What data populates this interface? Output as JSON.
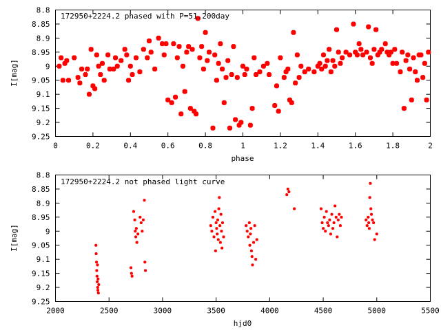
{
  "charts": {
    "phased": {
      "title": "172950+2224.2 phased with P=51.200day",
      "xlabel": "phase",
      "ylabel": "I[mag]"
    },
    "raw": {
      "title": "172950+2224.2 not phased light curve",
      "xlabel": "hjd0",
      "ylabel": "I[mag]"
    }
  },
  "chart_data": [
    {
      "type": "scatter",
      "title": "172950+2224.2 phased with P=51.200day",
      "xlabel": "phase",
      "ylabel": "I[mag]",
      "xlim": [
        0,
        2
      ],
      "ylim": [
        9.25,
        8.8
      ],
      "y_inverted": true,
      "xticks": [
        "0",
        "0.2",
        "0.4",
        "0.6",
        "0.8",
        "1",
        "1.2",
        "1.4",
        "1.6",
        "1.8",
        "2"
      ],
      "yticks": [
        "8.8",
        "8.85",
        "8.9",
        "8.95",
        "9",
        "9.05",
        "9.1",
        "9.15",
        "9.2",
        "9.25"
      ],
      "marker_color": "#ff0000",
      "grid": false,
      "series": [
        {
          "points": [
            [
              0.02,
              9.0
            ],
            [
              0.03,
              8.97
            ],
            [
              0.04,
              9.05
            ],
            [
              0.05,
              8.99
            ],
            [
              0.06,
              8.98
            ],
            [
              0.07,
              9.05
            ],
            [
              0.1,
              8.97
            ],
            [
              0.12,
              9.04
            ],
            [
              0.13,
              9.06
            ],
            [
              0.14,
              9.01
            ],
            [
              0.16,
              9.03
            ],
            [
              0.17,
              9.01
            ],
            [
              0.18,
              9.1
            ],
            [
              0.19,
              8.94
            ],
            [
              0.2,
              9.07
            ],
            [
              0.21,
              9.08
            ],
            [
              0.22,
              8.96
            ],
            [
              0.23,
              9.0
            ],
            [
              0.24,
              9.03
            ],
            [
              0.25,
              8.99
            ],
            [
              0.26,
              9.05
            ],
            [
              0.28,
              8.96
            ],
            [
              0.29,
              9.01
            ],
            [
              0.31,
              9.01
            ],
            [
              0.32,
              8.97
            ],
            [
              0.33,
              9.0
            ],
            [
              0.35,
              8.98
            ],
            [
              0.37,
              8.94
            ],
            [
              0.38,
              8.96
            ],
            [
              0.39,
              9.05
            ],
            [
              0.4,
              9.0
            ],
            [
              0.41,
              9.03
            ],
            [
              0.43,
              8.97
            ],
            [
              0.45,
              9.02
            ],
            [
              0.47,
              8.94
            ],
            [
              0.49,
              8.97
            ],
            [
              0.5,
              8.91
            ],
            [
              0.51,
              8.95
            ],
            [
              0.53,
              9.01
            ],
            [
              0.55,
              8.9
            ],
            [
              0.57,
              8.92
            ],
            [
              0.58,
              8.96
            ],
            [
              0.59,
              8.92
            ],
            [
              0.6,
              9.12
            ],
            [
              0.62,
              9.13
            ],
            [
              0.63,
              8.92
            ],
            [
              0.64,
              9.11
            ],
            [
              0.65,
              8.97
            ],
            [
              0.66,
              8.93
            ],
            [
              0.67,
              9.17
            ],
            [
              0.68,
              9.0
            ],
            [
              0.69,
              9.09
            ],
            [
              0.7,
              8.95
            ],
            [
              0.71,
              8.93
            ],
            [
              0.72,
              9.15
            ],
            [
              0.73,
              8.94
            ],
            [
              0.74,
              9.16
            ],
            [
              0.75,
              9.17
            ],
            [
              0.76,
              8.83
            ],
            [
              0.77,
              8.97
            ],
            [
              0.78,
              8.93
            ],
            [
              0.79,
              9.01
            ],
            [
              0.8,
              8.88
            ],
            [
              0.81,
              8.98
            ],
            [
              0.82,
              8.95
            ],
            [
              0.84,
              9.22
            ],
            [
              0.85,
              8.96
            ],
            [
              0.86,
              9.05
            ],
            [
              0.87,
              8.99
            ],
            [
              0.88,
              8.92
            ],
            [
              0.89,
              9.01
            ],
            [
              0.9,
              9.13
            ],
            [
              0.91,
              9.04
            ],
            [
              0.92,
              8.98
            ],
            [
              0.93,
              9.22
            ],
            [
              0.94,
              9.03
            ],
            [
              0.95,
              8.93
            ],
            [
              0.96,
              9.19
            ],
            [
              0.97,
              9.04
            ],
            [
              0.98,
              9.21
            ],
            [
              0.99,
              9.2
            ],
            [
              1.0,
              9.0
            ],
            [
              1.01,
              9.03
            ],
            [
              1.02,
              9.01
            ],
            [
              1.04,
              9.21
            ],
            [
              1.05,
              9.15
            ],
            [
              1.06,
              8.97
            ],
            [
              1.07,
              9.03
            ],
            [
              1.09,
              9.02
            ],
            [
              1.11,
              9.0
            ],
            [
              1.13,
              8.99
            ],
            [
              1.14,
              9.03
            ],
            [
              1.17,
              9.14
            ],
            [
              1.18,
              9.07
            ],
            [
              1.19,
              9.16
            ],
            [
              1.2,
              8.97
            ],
            [
              1.22,
              9.04
            ],
            [
              1.23,
              9.02
            ],
            [
              1.24,
              9.01
            ],
            [
              1.25,
              9.12
            ],
            [
              1.26,
              9.13
            ],
            [
              1.27,
              8.88
            ],
            [
              1.28,
              9.06
            ],
            [
              1.29,
              8.96
            ],
            [
              1.3,
              9.04
            ],
            [
              1.31,
              9.0
            ],
            [
              1.33,
              9.02
            ],
            [
              1.35,
              9.01
            ],
            [
              1.38,
              9.02
            ],
            [
              1.4,
              9.0
            ],
            [
              1.41,
              8.99
            ],
            [
              1.42,
              9.01
            ],
            [
              1.43,
              8.96
            ],
            [
              1.44,
              9.0
            ],
            [
              1.45,
              8.98
            ],
            [
              1.46,
              8.94
            ],
            [
              1.47,
              9.02
            ],
            [
              1.48,
              8.98
            ],
            [
              1.49,
              9.0
            ],
            [
              1.5,
              8.87
            ],
            [
              1.51,
              8.95
            ],
            [
              1.52,
              8.99
            ],
            [
              1.53,
              8.97
            ],
            [
              1.55,
              8.95
            ],
            [
              1.57,
              8.96
            ],
            [
              1.59,
              8.85
            ],
            [
              1.6,
              8.95
            ],
            [
              1.61,
              8.96
            ],
            [
              1.62,
              8.92
            ],
            [
              1.63,
              8.94
            ],
            [
              1.64,
              8.96
            ],
            [
              1.66,
              8.95
            ],
            [
              1.67,
              8.86
            ],
            [
              1.68,
              8.97
            ],
            [
              1.69,
              8.99
            ],
            [
              1.7,
              8.94
            ],
            [
              1.71,
              8.87
            ],
            [
              1.72,
              8.96
            ],
            [
              1.73,
              8.95
            ],
            [
              1.74,
              8.94
            ],
            [
              1.76,
              8.92
            ],
            [
              1.77,
              8.95
            ],
            [
              1.78,
              8.96
            ],
            [
              1.79,
              8.95
            ],
            [
              1.8,
              8.99
            ],
            [
              1.81,
              8.94
            ],
            [
              1.82,
              8.99
            ],
            [
              1.84,
              9.02
            ],
            [
              1.85,
              8.95
            ],
            [
              1.86,
              9.15
            ],
            [
              1.87,
              8.98
            ],
            [
              1.88,
              8.96
            ],
            [
              1.89,
              9.01
            ],
            [
              1.9,
              9.12
            ],
            [
              1.91,
              8.97
            ],
            [
              1.92,
              9.02
            ],
            [
              1.93,
              9.05
            ],
            [
              1.94,
              8.96
            ],
            [
              1.95,
              8.96
            ],
            [
              1.96,
              9.04
            ],
            [
              1.97,
              8.99
            ],
            [
              1.98,
              9.12
            ],
            [
              1.99,
              8.95
            ]
          ]
        }
      ]
    },
    {
      "type": "scatter",
      "title": "172950+2224.2 not phased light curve",
      "xlabel": "hjd0",
      "ylabel": "I[mag]",
      "xlim": [
        2000,
        5500
      ],
      "ylim": [
        9.25,
        8.8
      ],
      "y_inverted": true,
      "xticks": [
        "2000",
        "2500",
        "3000",
        "3500",
        "4000",
        "4500",
        "5000",
        "5500"
      ],
      "yticks": [
        "8.8",
        "8.85",
        "8.9",
        "8.95",
        "9",
        "9.05",
        "9.1",
        "9.15",
        "9.2",
        "9.25"
      ],
      "marker_color": "#ff0000",
      "grid": false,
      "series": [
        {
          "points": [
            [
              2378,
              9.05
            ],
            [
              2380,
              9.08
            ],
            [
              2383,
              9.11
            ],
            [
              2385,
              9.14
            ],
            [
              2388,
              9.16
            ],
            [
              2390,
              9.18
            ],
            [
              2392,
              9.12
            ],
            [
              2394,
              9.2
            ],
            [
              2396,
              9.21
            ],
            [
              2398,
              9.17
            ],
            [
              2401,
              9.22
            ],
            [
              2404,
              9.19
            ],
            [
              2705,
              9.13
            ],
            [
              2710,
              9.15
            ],
            [
              2715,
              9.16
            ],
            [
              2730,
              8.93
            ],
            [
              2740,
              8.96
            ],
            [
              2745,
              9.0
            ],
            [
              2750,
              9.02
            ],
            [
              2755,
              8.99
            ],
            [
              2760,
              9.04
            ],
            [
              2770,
              9.01
            ],
            [
              2790,
              8.95
            ],
            [
              2800,
              8.97
            ],
            [
              2810,
              9.0
            ],
            [
              2820,
              8.96
            ],
            [
              2830,
              8.89
            ],
            [
              2835,
              9.11
            ],
            [
              2840,
              9.14
            ],
            [
              3450,
              8.98
            ],
            [
              3460,
              9.0
            ],
            [
              3470,
              8.95
            ],
            [
              3480,
              9.02
            ],
            [
              3490,
              8.93
            ],
            [
              3495,
              9.07
            ],
            [
              3500,
              8.97
            ],
            [
              3505,
              8.99
            ],
            [
              3510,
              9.01
            ],
            [
              3515,
              8.96
            ],
            [
              3520,
              9.03
            ],
            [
              3525,
              8.92
            ],
            [
              3530,
              8.88
            ],
            [
              3535,
              8.98
            ],
            [
              3540,
              9.04
            ],
            [
              3545,
              8.94
            ],
            [
              3550,
              9.0
            ],
            [
              3555,
              9.06
            ],
            [
              3560,
              8.97
            ],
            [
              3570,
              9.02
            ],
            [
              3780,
              8.98
            ],
            [
              3790,
              9.0
            ],
            [
              3800,
              9.02
            ],
            [
              3810,
              8.97
            ],
            [
              3815,
              9.05
            ],
            [
              3820,
              9.01
            ],
            [
              3825,
              8.99
            ],
            [
              3830,
              9.07
            ],
            [
              3835,
              9.09
            ],
            [
              3840,
              9.12
            ],
            [
              3850,
              9.04
            ],
            [
              3860,
              8.98
            ],
            [
              3870,
              9.1
            ],
            [
              3880,
              9.03
            ],
            [
              4160,
              8.87
            ],
            [
              4170,
              8.85
            ],
            [
              4180,
              8.86
            ],
            [
              4230,
              8.92
            ],
            [
              4480,
              8.92
            ],
            [
              4490,
              8.97
            ],
            [
              4500,
              8.99
            ],
            [
              4510,
              8.95
            ],
            [
              4520,
              9.0
            ],
            [
              4530,
              8.93
            ],
            [
              4540,
              8.97
            ],
            [
              4550,
              8.98
            ],
            [
              4560,
              8.96
            ],
            [
              4570,
              9.01
            ],
            [
              4580,
              8.94
            ],
            [
              4590,
              8.99
            ],
            [
              4600,
              8.97
            ],
            [
              4610,
              8.91
            ],
            [
              4620,
              8.95
            ],
            [
              4630,
              9.02
            ],
            [
              4640,
              8.96
            ],
            [
              4650,
              8.94
            ],
            [
              4660,
              8.98
            ],
            [
              4670,
              8.95
            ],
            [
              4900,
              8.96
            ],
            [
              4910,
              8.98
            ],
            [
              4920,
              8.95
            ],
            [
              4925,
              8.97
            ],
            [
              4930,
              8.99
            ],
            [
              4935,
              8.88
            ],
            [
              4940,
              8.83
            ],
            [
              4945,
              8.92
            ],
            [
              4950,
              8.94
            ],
            [
              4960,
              8.96
            ],
            [
              4970,
              8.97
            ],
            [
              4980,
              9.03
            ],
            [
              5000,
              9.01
            ]
          ]
        }
      ]
    }
  ]
}
